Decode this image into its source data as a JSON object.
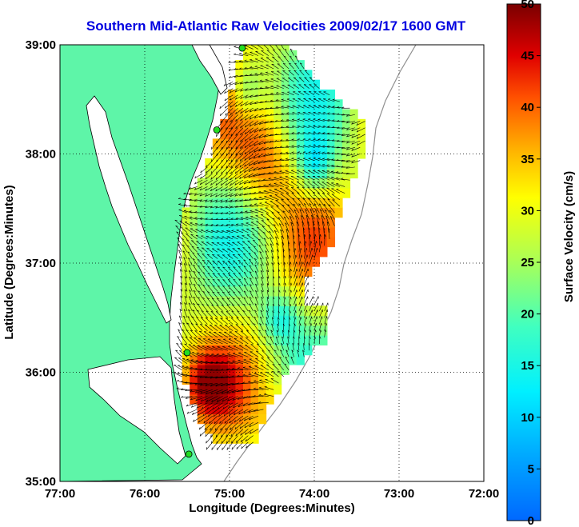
{
  "chart_data": {
    "type": "heatmap",
    "title": "Southern Mid-Atlantic Raw Velocities 2009/02/17 1600 GMT",
    "xlabel": "Longitude (Degrees:Minutes)",
    "ylabel": "Latitude (Degrees:Minutes)",
    "colorbar_label": "Surface Velocity (cm/s)",
    "xlim": [
      -77,
      -72
    ],
    "ylim": [
      35,
      39
    ],
    "x_ticks": [
      {
        "value": -77,
        "label": "77:00"
      },
      {
        "value": -76,
        "label": "76:00"
      },
      {
        "value": -75,
        "label": "75:00"
      },
      {
        "value": -74,
        "label": "74:00"
      },
      {
        "value": -73,
        "label": "73:00"
      },
      {
        "value": -72,
        "label": "72:00"
      }
    ],
    "y_ticks": [
      {
        "value": 35,
        "label": "35:00"
      },
      {
        "value": 36,
        "label": "36:00"
      },
      {
        "value": 37,
        "label": "37:00"
      },
      {
        "value": 38,
        "label": "38:00"
      },
      {
        "value": 39,
        "label": "39:00"
      }
    ],
    "colorbar_range": [
      0,
      50
    ],
    "colorbar_ticks": [
      {
        "value": 0,
        "label": "0"
      },
      {
        "value": 5,
        "label": "5"
      },
      {
        "value": 10,
        "label": "10"
      },
      {
        "value": 15,
        "label": "15"
      },
      {
        "value": 20,
        "label": "20"
      },
      {
        "value": 25,
        "label": "25"
      },
      {
        "value": 30,
        "label": "30"
      },
      {
        "value": 35,
        "label": "35"
      },
      {
        "value": 40,
        "label": "40"
      },
      {
        "value": 45,
        "label": "45"
      },
      {
        "value": 50,
        "label": "50"
      }
    ],
    "grid": "dotted",
    "colormap": "jet",
    "land_color": "#5ef5a8",
    "title_color": "#0000e0",
    "radar_sites": [
      {
        "lon": -74.85,
        "lat": 38.97
      },
      {
        "lon": -75.15,
        "lat": 38.22
      },
      {
        "lon": -75.5,
        "lat": 36.18
      },
      {
        "lon": -75.48,
        "lat": 35.25
      }
    ]
  }
}
